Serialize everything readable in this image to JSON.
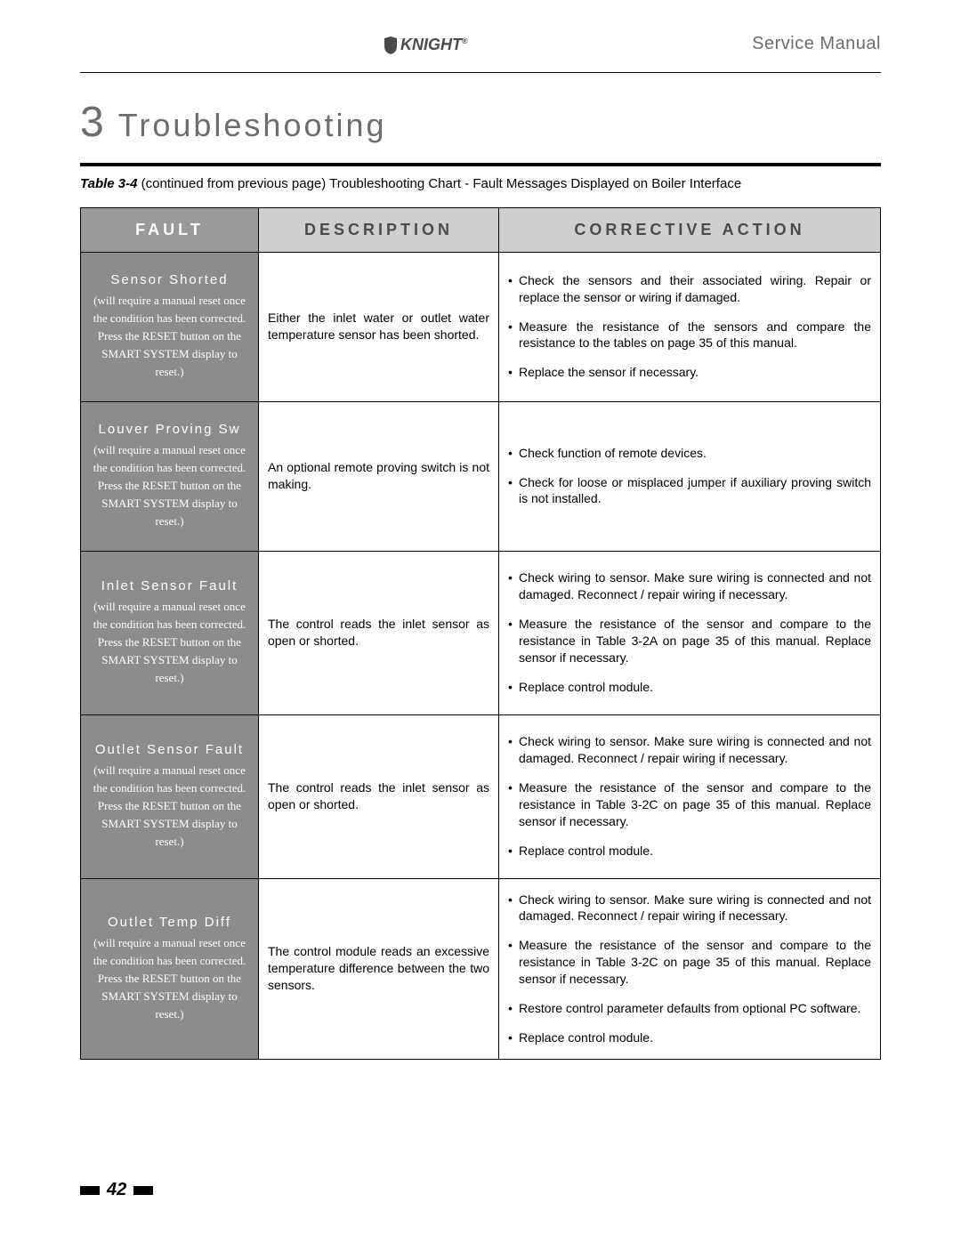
{
  "header": {
    "logo_text": "KNIGHT",
    "doc_type": "Service Manual"
  },
  "section": {
    "number": "3",
    "title": "Troubleshooting"
  },
  "caption": {
    "label": "Table 3-4",
    "text": "(continued from previous page) Troubleshooting Chart - Fault Messages Displayed on Boiler Interface"
  },
  "table": {
    "headers": {
      "fault": "FAULT",
      "description": "DESCRIPTION",
      "action": "CORRECTIVE ACTION"
    },
    "note_text": "(will require a manual reset once the condition has been corrected.  Press the RESET button on the SMART SYSTEM display to reset.)",
    "rows": [
      {
        "fault": "Sensor Shorted",
        "description": "Either the inlet water or outlet water temperature sensor has been shorted.",
        "actions": [
          "Check the sensors and their associated wiring. Repair or replace the sensor or wiring if damaged.",
          "Measure the resistance of the sensors and compare the resistance to the tables on page 35 of this manual.",
          "Replace the sensor if necessary."
        ]
      },
      {
        "fault": "Louver Proving Sw",
        "description": "An optional remote proving switch is not making.",
        "actions": [
          "Check function of remote devices.",
          "Check for loose or misplaced jumper if auxiliary proving switch is not installed."
        ]
      },
      {
        "fault": "Inlet Sensor Fault",
        "description": "The control reads the inlet sensor as open or shorted.",
        "actions": [
          "Check wiring to sensor.  Make sure wiring is connected and not damaged.  Reconnect / repair wiring if necessary.",
          "Measure the resistance of the sensor and compare to the resistance in Table 3-2A on page 35 of this manual.  Replace sensor if necessary.",
          "Replace control module."
        ]
      },
      {
        "fault": "Outlet Sensor Fault",
        "description": "The control reads the inlet sensor as open or shorted.",
        "actions": [
          "Check wiring to sensor.  Make sure wiring is connected and not damaged.  Reconnect / repair wiring if necessary.",
          "Measure the resistance of the sensor and compare to the resistance in Table 3-2C on page 35 of this manual.  Replace sensor if necessary.",
          "Replace control module."
        ]
      },
      {
        "fault": "Outlet Temp Diff",
        "description": "The control module reads an excessive temperature difference between the two sensors.",
        "actions": [
          "Check wiring to sensor.  Make sure wiring is connected and not damaged.  Reconnect / repair wiring if necessary.",
          "Measure the resistance of the sensor and compare to the resistance in Table 3-2C on page 35 of this manual.  Replace sensor if necessary.",
          "Restore control parameter defaults from optional PC software.",
          "Replace control module."
        ]
      }
    ]
  },
  "footer": {
    "page": "42"
  },
  "colors": {
    "header_gray": "#6d6d6d",
    "th_bg": "#cfcfcf",
    "th_fault_bg": "#9a9a9a",
    "fault_cell_bg": "#8c8c8c"
  }
}
